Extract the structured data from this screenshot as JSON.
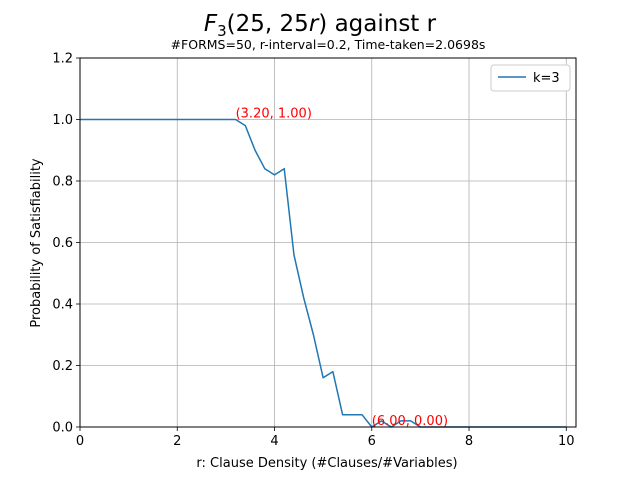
{
  "chart_data": {
    "type": "line",
    "title": "F₃(25, 25r) against r",
    "subtitle": "#FORMS=50, r-interval=0.2, Time-taken=2.0698s",
    "xlabel": "r: Clause Density (#Clauses/#Variables)",
    "ylabel": "Probability of Satisfiability",
    "xlim": [
      0,
      10.2
    ],
    "ylim": [
      0,
      1.2
    ],
    "x_ticks": [
      0,
      2,
      4,
      6,
      8,
      10
    ],
    "x_tick_labels": [
      "0",
      "2",
      "4",
      "6",
      "8",
      "10"
    ],
    "y_ticks": [
      0.0,
      0.2,
      0.4,
      0.6,
      0.8,
      1.0,
      1.2
    ],
    "y_tick_labels": [
      "0.0",
      "0.2",
      "0.4",
      "0.6",
      "0.8",
      "1.0",
      "1.2"
    ],
    "grid": true,
    "legend_position": "top-right",
    "series": [
      {
        "name": "k=3",
        "color": "#1f77b4",
        "x": [
          0,
          0.2,
          0.4,
          0.6,
          0.8,
          1.0,
          1.2,
          1.4,
          1.6,
          1.8,
          2.0,
          2.2,
          2.4,
          2.6,
          2.8,
          3.0,
          3.2,
          3.4,
          3.6,
          3.8,
          4.0,
          4.2,
          4.4,
          4.6,
          4.8,
          5.0,
          5.2,
          5.4,
          5.6,
          5.8,
          6.0,
          6.2,
          6.4,
          6.6,
          6.8,
          7.0,
          7.2,
          7.4,
          7.6,
          7.8,
          8.0,
          8.2,
          8.4,
          8.6,
          8.8,
          9.0,
          9.2,
          9.4,
          9.6,
          9.8,
          10.0
        ],
        "y": [
          1.0,
          1.0,
          1.0,
          1.0,
          1.0,
          1.0,
          1.0,
          1.0,
          1.0,
          1.0,
          1.0,
          1.0,
          1.0,
          1.0,
          1.0,
          1.0,
          1.0,
          0.98,
          0.9,
          0.84,
          0.82,
          0.84,
          0.56,
          0.42,
          0.3,
          0.16,
          0.18,
          0.04,
          0.04,
          0.04,
          0.0,
          0.02,
          0.0,
          0.02,
          0.02,
          0.0,
          0.0,
          0.0,
          0.0,
          0.0,
          0.0,
          0.0,
          0.0,
          0.0,
          0.0,
          0.0,
          0.0,
          0.0,
          0.0,
          0.0,
          0.0
        ]
      }
    ],
    "annotations": [
      {
        "text": "(3.20, 1.00)",
        "x": 3.2,
        "y": 1.0,
        "color": "#ff0000"
      },
      {
        "text": "(6.00, 0.00)",
        "x": 6.0,
        "y": 0.0,
        "color": "#ff0000"
      }
    ]
  }
}
